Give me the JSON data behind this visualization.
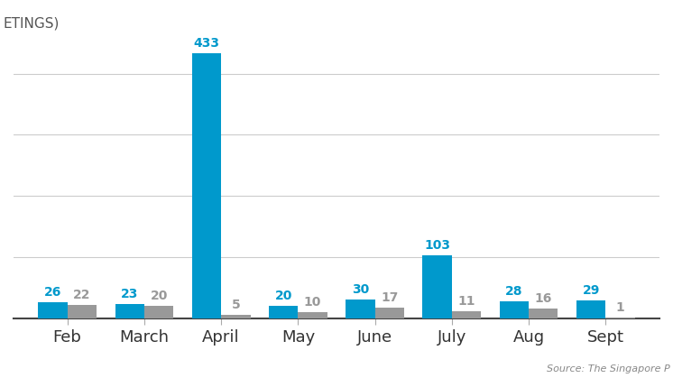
{
  "months": [
    "Feb",
    "March",
    "April",
    "May",
    "June",
    "July",
    "Aug",
    "Sept"
  ],
  "blue_values": [
    26,
    23,
    433,
    20,
    30,
    103,
    28,
    29
  ],
  "gray_values": [
    22,
    20,
    5,
    10,
    17,
    11,
    16,
    1
  ],
  "blue_color": "#0099cc",
  "gray_color": "#999999",
  "background_color": "#ffffff",
  "ylabel_text": "ETINGS)",
  "source_text": "Source: The Singapore P",
  "bar_width": 0.38,
  "ylim": [
    0,
    480
  ],
  "label_fontsize": 10,
  "tick_fontsize": 13,
  "ylabel_fontsize": 11,
  "source_fontsize": 8
}
